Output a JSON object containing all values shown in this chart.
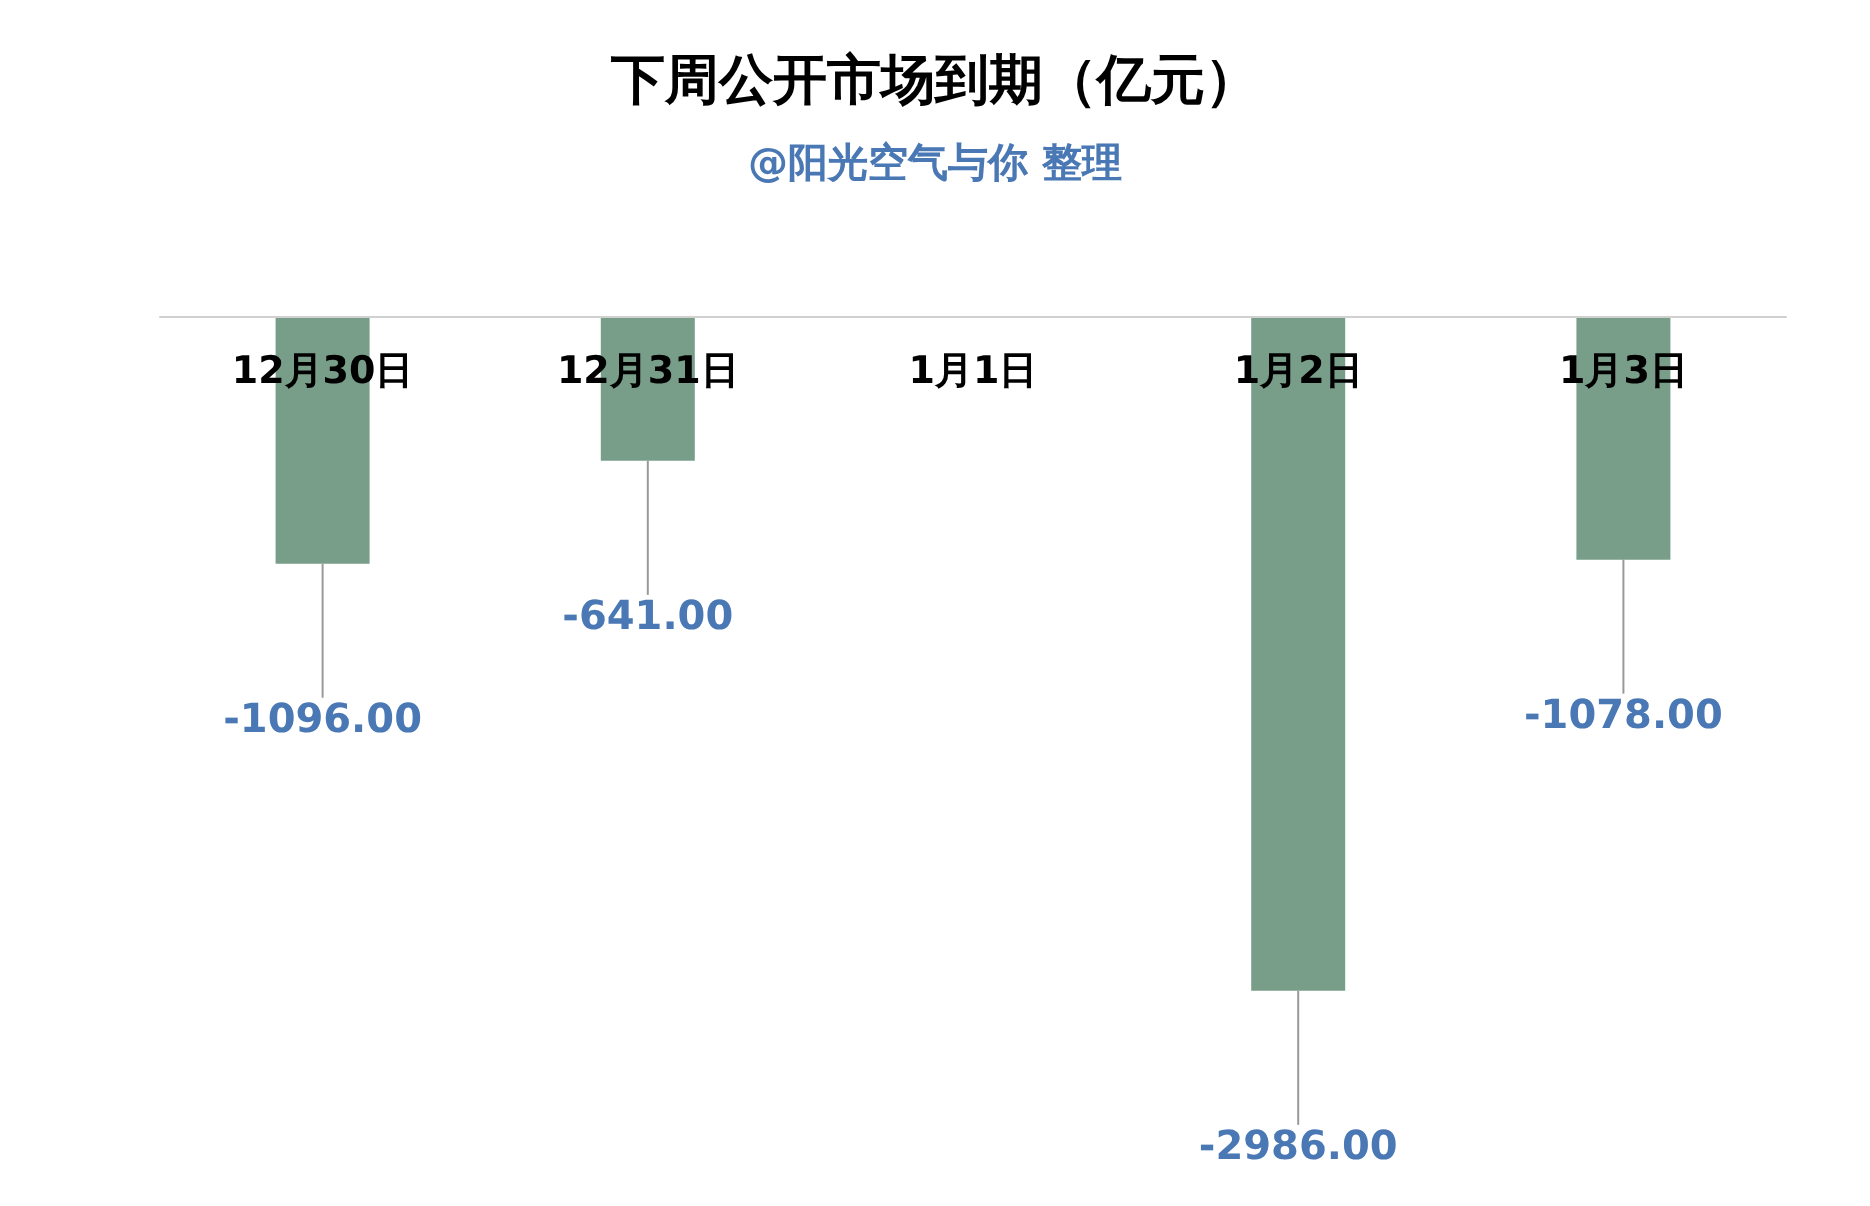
{
  "chart_data": {
    "type": "bar",
    "title": "下周公开市场到期（亿元）",
    "subtitle": "@阳光空气与你 整理",
    "categories": [
      "12月30日",
      "12月31日",
      "1月1日",
      "1月2日",
      "1月3日"
    ],
    "values": [
      -1096,
      -641,
      null,
      -2986,
      -1078
    ],
    "value_labels": [
      "-1096.00",
      "-641.00",
      null,
      "-2986.00",
      "-1078.00"
    ],
    "color": "#789e8a",
    "grid": false
  }
}
